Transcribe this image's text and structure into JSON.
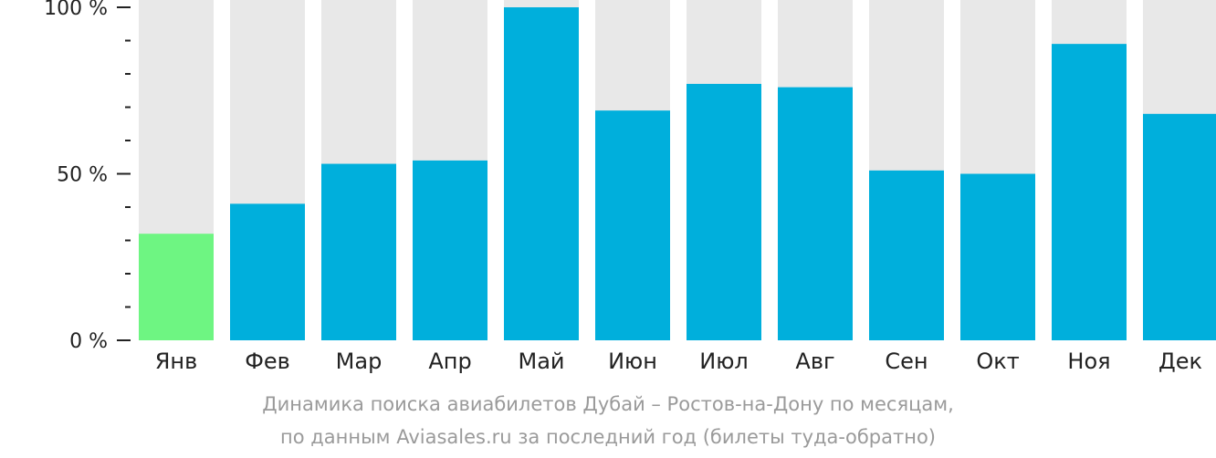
{
  "chart_data": {
    "type": "bar",
    "categories": [
      "Янв",
      "Фев",
      "Мар",
      "Апр",
      "Май",
      "Июн",
      "Июл",
      "Авг",
      "Сен",
      "Окт",
      "Ноя",
      "Дек"
    ],
    "values": [
      32,
      41,
      53,
      54,
      100,
      69,
      77,
      76,
      51,
      50,
      89,
      68
    ],
    "ylim": [
      0,
      100
    ],
    "y_ticks": [
      "0 %",
      "50 %",
      "100 %"
    ],
    "colors": {
      "bar": "#00afdc",
      "highlight_bar": "#6ef582",
      "background_bar": "#e8e8e8",
      "axis": "#222222"
    },
    "highlight_index": 0
  },
  "caption": {
    "line1": "Динамика поиска авиабилетов Дубай – Ростов-на-Дону по месяцам,",
    "line2": "по данным Aviasales.ru за последний год (билеты туда-обратно)"
  }
}
